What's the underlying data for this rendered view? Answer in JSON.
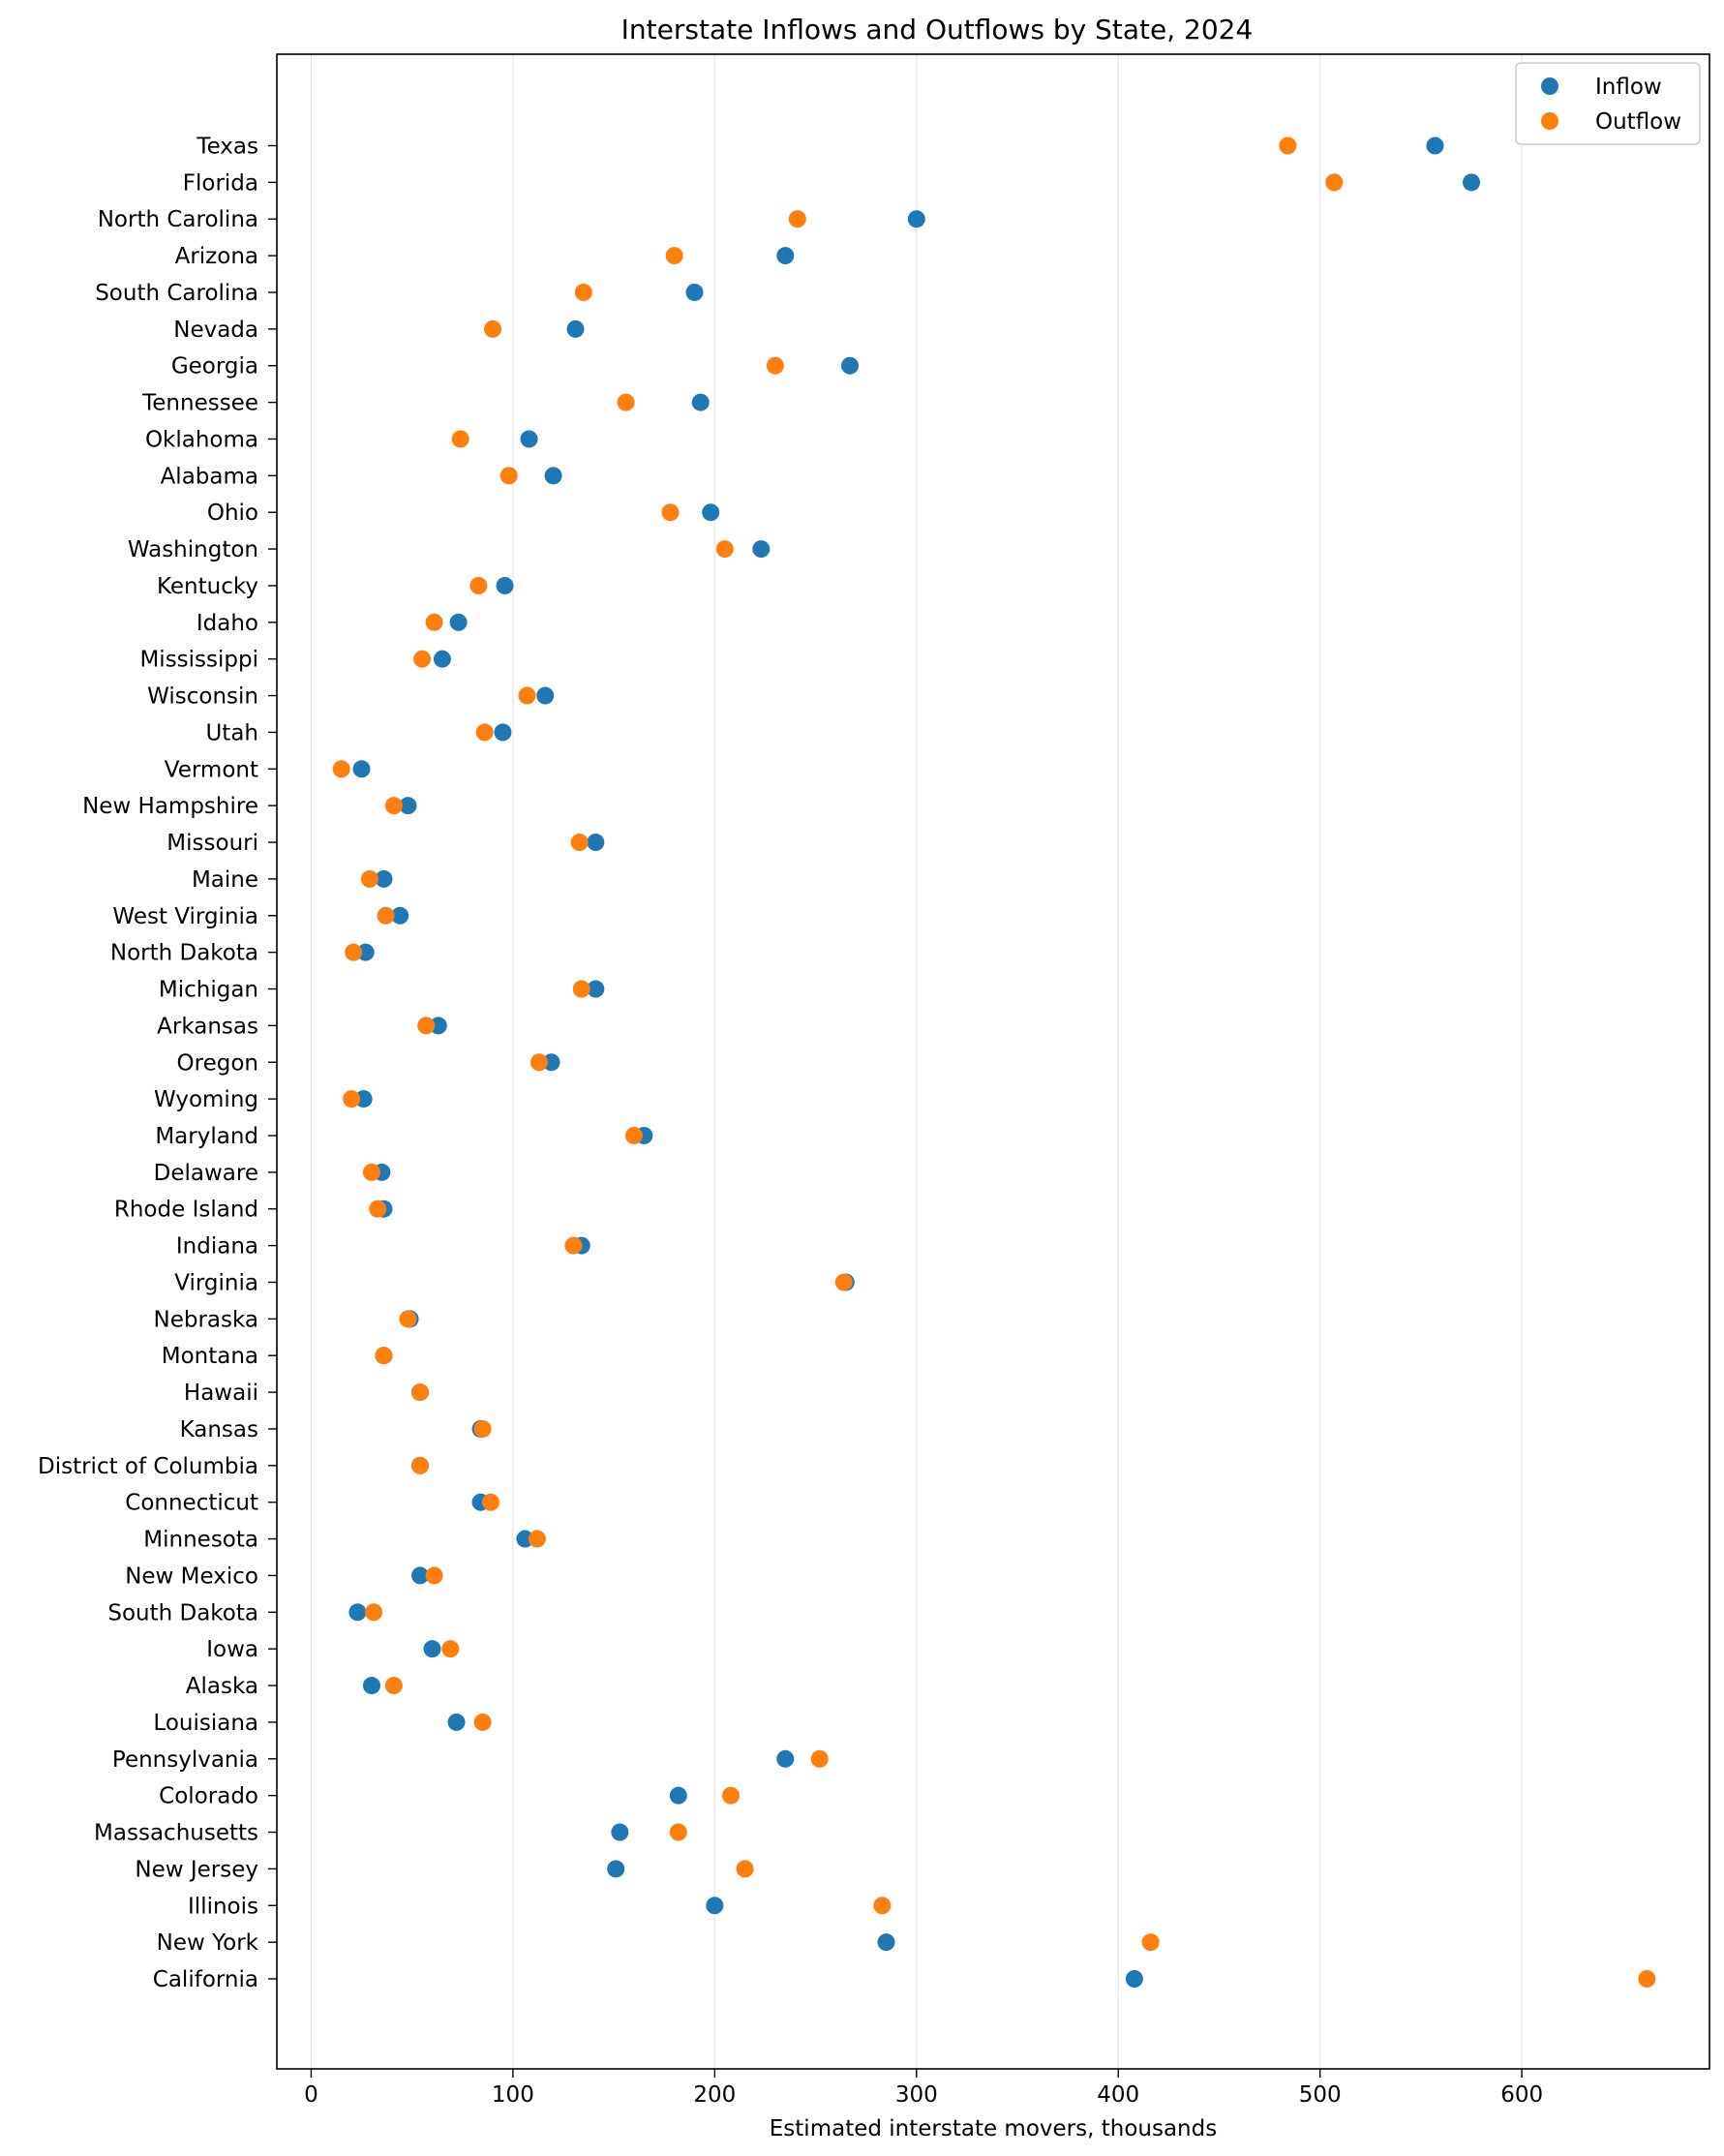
{
  "chart_data": {
    "type": "scatter",
    "title": "Interstate Inflows and Outflows by State, 2024",
    "xlabel": "Estimated interstate movers, thousands",
    "ylabel": "",
    "xlim": [
      -17,
      693
    ],
    "xticks": [
      0,
      100,
      200,
      300,
      400,
      500,
      600
    ],
    "grid": "vertical",
    "legend": "top-right",
    "colors": {
      "Inflow": "#1f77b4",
      "Outflow": "#ff7f0e"
    },
    "categories": [
      "Texas",
      "Florida",
      "North Carolina",
      "Arizona",
      "South Carolina",
      "Nevada",
      "Georgia",
      "Tennessee",
      "Oklahoma",
      "Alabama",
      "Ohio",
      "Washington",
      "Kentucky",
      "Idaho",
      "Mississippi",
      "Wisconsin",
      "Utah",
      "Vermont",
      "New Hampshire",
      "Missouri",
      "Maine",
      "West Virginia",
      "North Dakota",
      "Michigan",
      "Arkansas",
      "Oregon",
      "Wyoming",
      "Maryland",
      "Delaware",
      "Rhode Island",
      "Indiana",
      "Virginia",
      "Nebraska",
      "Montana",
      "Hawaii",
      "Kansas",
      "District of Columbia",
      "Connecticut",
      "Minnesota",
      "New Mexico",
      "South Dakota",
      "Iowa",
      "Alaska",
      "Louisiana",
      "Pennsylvania",
      "Colorado",
      "Massachusetts",
      "New Jersey",
      "Illinois",
      "New York",
      "California"
    ],
    "series": [
      {
        "name": "Inflow",
        "values": [
          557,
          575,
          300,
          235,
          190,
          131,
          267,
          193,
          108,
          120,
          198,
          223,
          96,
          73,
          65,
          116,
          95,
          25,
          48,
          141,
          36,
          44,
          27,
          141,
          63,
          119,
          26,
          165,
          35,
          36,
          134,
          265,
          49,
          36,
          54,
          84,
          54,
          84,
          106,
          54,
          23,
          60,
          30,
          72,
          235,
          182,
          153,
          151,
          200,
          285,
          408
        ]
      },
      {
        "name": "Outflow",
        "values": [
          484,
          507,
          241,
          180,
          135,
          90,
          230,
          156,
          74,
          98,
          178,
          205,
          83,
          61,
          55,
          107,
          86,
          15,
          41,
          133,
          29,
          37,
          21,
          134,
          57,
          113,
          20,
          160,
          30,
          33,
          130,
          264,
          48,
          36,
          54,
          85,
          54,
          89,
          112,
          61,
          31,
          69,
          41,
          85,
          252,
          208,
          182,
          215,
          283,
          416,
          662
        ]
      }
    ]
  }
}
